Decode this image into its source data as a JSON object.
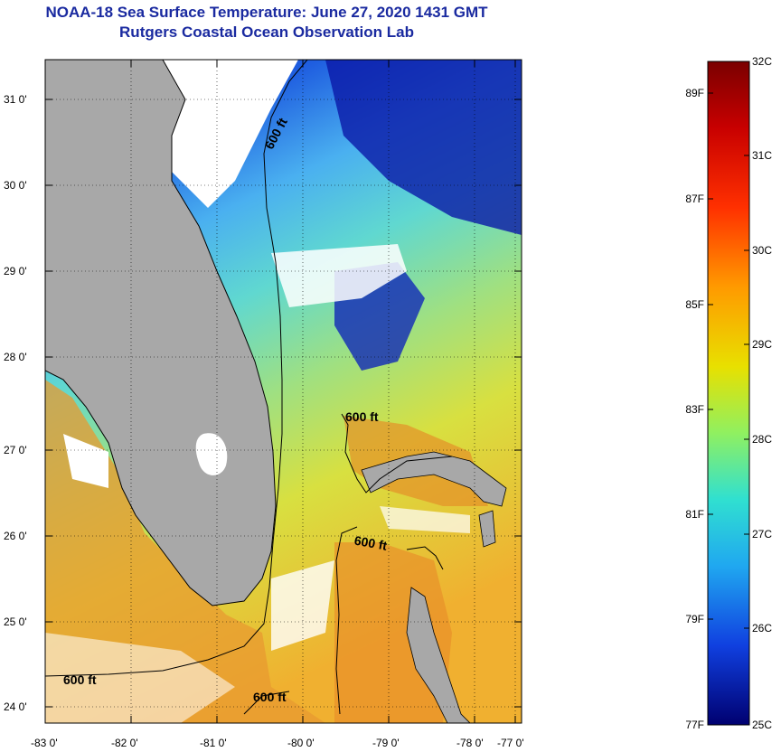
{
  "header": {
    "title": "NOAA-18 Sea Surface Temperature:  June 27, 2020 1431 GMT",
    "subtitle": "Rutgers Coastal Ocean Observation Lab"
  },
  "map": {
    "lat_labels": [
      "31 0'",
      "30 0'",
      "29 0'",
      "28 0'",
      "27 0'",
      "26 0'",
      "25 0'",
      "24 0'"
    ],
    "lon_labels": [
      "-83 0'",
      "-82 0'",
      "-81 0'",
      "-80 0'",
      "-79 0'",
      "-78 0'",
      "-77 0'"
    ],
    "isobath_labels": [
      "600 ft",
      "600 ft",
      "600 ft",
      "600 ft",
      "600 ft"
    ],
    "colors": {
      "land": "#a8a8a8",
      "cloud": "#ffffff"
    }
  },
  "colorbar": {
    "celsius_labels": [
      "32C",
      "31C",
      "30C",
      "29C",
      "28C",
      "27C",
      "26C",
      "25C"
    ],
    "fahrenheit_labels": [
      "89F",
      "87F",
      "85F",
      "83F",
      "81F",
      "79F",
      "77F"
    ]
  }
}
